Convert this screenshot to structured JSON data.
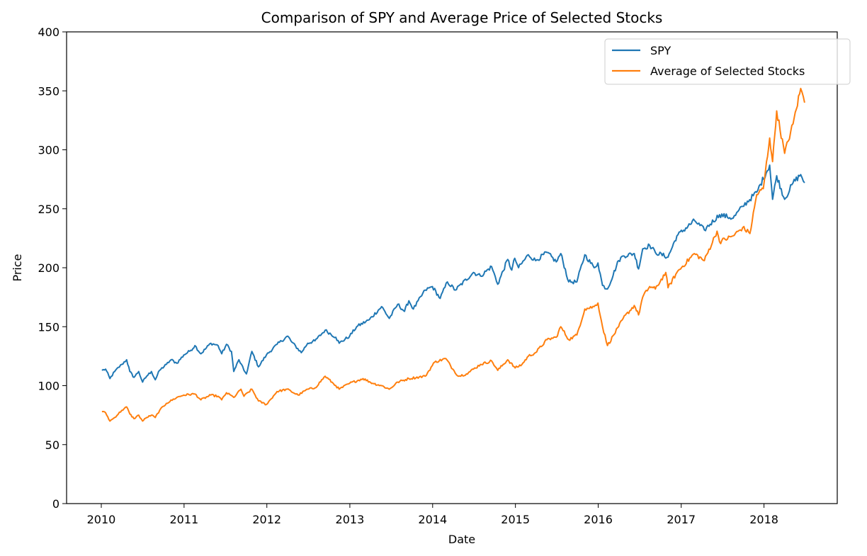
{
  "chart_data": {
    "type": "line",
    "title": "Comparison of SPY and Average Price of Selected Stocks",
    "xlabel": "Date",
    "ylabel": "Price",
    "xlim": [
      "2009-08-01",
      "2018-11-20"
    ],
    "ylim": [
      0,
      400
    ],
    "x_ticks": [
      "2010",
      "2011",
      "2012",
      "2013",
      "2014",
      "2015",
      "2016",
      "2017",
      "2018"
    ],
    "y_ticks": [
      "0",
      "50",
      "100",
      "150",
      "200",
      "250",
      "300",
      "350",
      "400"
    ],
    "grid": false,
    "legend_position": "top-right",
    "series": [
      {
        "name": "SPY",
        "color": "#1f77b4",
        "points": [
          [
            "2010-01-04",
            113
          ],
          [
            "2010-01-20",
            114
          ],
          [
            "2010-02-08",
            106
          ],
          [
            "2010-03-01",
            112
          ],
          [
            "2010-04-01",
            118
          ],
          [
            "2010-04-23",
            122
          ],
          [
            "2010-05-07",
            112
          ],
          [
            "2010-05-25",
            107
          ],
          [
            "2010-06-15",
            112
          ],
          [
            "2010-07-02",
            103
          ],
          [
            "2010-07-20",
            108
          ],
          [
            "2010-08-10",
            112
          ],
          [
            "2010-08-27",
            105
          ],
          [
            "2010-09-15",
            113
          ],
          [
            "2010-10-15",
            118
          ],
          [
            "2010-11-05",
            122
          ],
          [
            "2010-11-30",
            119
          ],
          [
            "2010-12-31",
            126
          ],
          [
            "2011-01-31",
            130
          ],
          [
            "2011-02-18",
            134
          ],
          [
            "2011-03-16",
            127
          ],
          [
            "2011-04-29",
            136
          ],
          [
            "2011-05-31",
            134
          ],
          [
            "2011-06-16",
            127
          ],
          [
            "2011-07-07",
            135
          ],
          [
            "2011-07-29",
            129
          ],
          [
            "2011-08-08",
            112
          ],
          [
            "2011-08-31",
            122
          ],
          [
            "2011-09-22",
            113
          ],
          [
            "2011-10-03",
            110
          ],
          [
            "2011-10-27",
            129
          ],
          [
            "2011-11-25",
            116
          ],
          [
            "2011-12-30",
            126
          ],
          [
            "2012-02-15",
            135
          ],
          [
            "2012-04-02",
            142
          ],
          [
            "2012-04-20",
            137
          ],
          [
            "2012-06-01",
            128
          ],
          [
            "2012-06-29",
            136
          ],
          [
            "2012-07-31",
            138
          ],
          [
            "2012-09-14",
            147
          ],
          [
            "2012-10-31",
            141
          ],
          [
            "2012-11-15",
            136
          ],
          [
            "2012-12-31",
            142
          ],
          [
            "2013-01-31",
            150
          ],
          [
            "2013-03-28",
            156
          ],
          [
            "2013-05-21",
            167
          ],
          [
            "2013-06-24",
            157
          ],
          [
            "2013-07-31",
            169
          ],
          [
            "2013-08-30",
            163
          ],
          [
            "2013-09-18",
            172
          ],
          [
            "2013-10-08",
            165
          ],
          [
            "2013-11-29",
            181
          ],
          [
            "2013-12-31",
            184
          ],
          [
            "2014-02-03",
            174
          ],
          [
            "2014-03-07",
            188
          ],
          [
            "2014-04-11",
            181
          ],
          [
            "2014-06-30",
            196
          ],
          [
            "2014-07-31",
            193
          ],
          [
            "2014-09-18",
            201
          ],
          [
            "2014-10-15",
            186
          ],
          [
            "2014-11-28",
            207
          ],
          [
            "2014-12-16",
            198
          ],
          [
            "2014-12-29",
            208
          ],
          [
            "2015-01-15",
            200
          ],
          [
            "2015-02-27",
            211
          ],
          [
            "2015-03-31",
            206
          ],
          [
            "2015-05-20",
            213
          ],
          [
            "2015-06-30",
            205
          ],
          [
            "2015-07-20",
            212
          ],
          [
            "2015-08-24",
            188
          ],
          [
            "2015-09-29",
            188
          ],
          [
            "2015-11-03",
            211
          ],
          [
            "2015-12-14",
            200
          ],
          [
            "2015-12-31",
            204
          ],
          [
            "2016-01-20",
            185
          ],
          [
            "2016-02-11",
            182
          ],
          [
            "2016-03-31",
            206
          ],
          [
            "2016-04-20",
            210
          ],
          [
            "2016-06-08",
            212
          ],
          [
            "2016-06-27",
            199
          ],
          [
            "2016-07-15",
            216
          ],
          [
            "2016-08-15",
            219
          ],
          [
            "2016-09-09",
            213
          ],
          [
            "2016-11-04",
            209
          ],
          [
            "2016-12-13",
            227
          ],
          [
            "2017-03-01",
            240
          ],
          [
            "2017-04-13",
            232
          ],
          [
            "2017-06-19",
            245
          ],
          [
            "2017-08-18",
            242
          ],
          [
            "2017-09-29",
            252
          ],
          [
            "2017-11-30",
            264
          ],
          [
            "2018-01-26",
            287
          ],
          [
            "2018-02-08",
            258
          ],
          [
            "2018-02-26",
            278
          ],
          [
            "2018-04-02",
            258
          ],
          [
            "2018-05-09",
            272
          ],
          [
            "2018-06-12",
            279
          ],
          [
            "2018-06-29",
            272
          ]
        ]
      },
      {
        "name": "Average of Selected Stocks",
        "color": "#ff7f0e",
        "points": [
          [
            "2010-01-04",
            78
          ],
          [
            "2010-01-20",
            77
          ],
          [
            "2010-02-08",
            70
          ],
          [
            "2010-03-01",
            73
          ],
          [
            "2010-04-01",
            79
          ],
          [
            "2010-04-23",
            82
          ],
          [
            "2010-05-07",
            76
          ],
          [
            "2010-05-25",
            72
          ],
          [
            "2010-06-15",
            75
          ],
          [
            "2010-07-02",
            70
          ],
          [
            "2010-07-20",
            73
          ],
          [
            "2010-08-10",
            75
          ],
          [
            "2010-08-27",
            73
          ],
          [
            "2010-09-15",
            79
          ],
          [
            "2010-10-15",
            85
          ],
          [
            "2010-11-30",
            90
          ],
          [
            "2010-12-31",
            92
          ],
          [
            "2011-02-18",
            93
          ],
          [
            "2011-03-16",
            88
          ],
          [
            "2011-04-29",
            92
          ],
          [
            "2011-05-31",
            91
          ],
          [
            "2011-06-16",
            88
          ],
          [
            "2011-07-07",
            94
          ],
          [
            "2011-08-08",
            90
          ],
          [
            "2011-09-09",
            97
          ],
          [
            "2011-09-22",
            91
          ],
          [
            "2011-10-27",
            97
          ],
          [
            "2011-11-25",
            87
          ],
          [
            "2011-12-30",
            84
          ],
          [
            "2012-02-15",
            95
          ],
          [
            "2012-03-30",
            97
          ],
          [
            "2012-05-18",
            92
          ],
          [
            "2012-06-29",
            97
          ],
          [
            "2012-07-31",
            98
          ],
          [
            "2012-09-14",
            108
          ],
          [
            "2012-10-31",
            100
          ],
          [
            "2012-11-15",
            97
          ],
          [
            "2012-12-31",
            102
          ],
          [
            "2013-02-28",
            106
          ],
          [
            "2013-04-12",
            102
          ],
          [
            "2013-05-21",
            100
          ],
          [
            "2013-06-24",
            97
          ],
          [
            "2013-07-31",
            103
          ],
          [
            "2013-09-18",
            106
          ],
          [
            "2013-11-29",
            108
          ],
          [
            "2014-01-10",
            120
          ],
          [
            "2014-02-28",
            123
          ],
          [
            "2014-03-31",
            114
          ],
          [
            "2014-04-25",
            108
          ],
          [
            "2014-05-30",
            110
          ],
          [
            "2014-07-31",
            118
          ],
          [
            "2014-09-18",
            121
          ],
          [
            "2014-10-15",
            113
          ],
          [
            "2014-11-28",
            122
          ],
          [
            "2014-12-31",
            115
          ],
          [
            "2015-01-30",
            118
          ],
          [
            "2015-02-27",
            125
          ],
          [
            "2015-03-31",
            128
          ],
          [
            "2015-05-20",
            139
          ],
          [
            "2015-06-30",
            141
          ],
          [
            "2015-07-20",
            150
          ],
          [
            "2015-08-24",
            139
          ],
          [
            "2015-09-29",
            143
          ],
          [
            "2015-11-03",
            165
          ],
          [
            "2015-12-14",
            167
          ],
          [
            "2015-12-31",
            170
          ],
          [
            "2016-01-20",
            150
          ],
          [
            "2016-02-11",
            134
          ],
          [
            "2016-03-31",
            150
          ],
          [
            "2016-04-20",
            157
          ],
          [
            "2016-06-08",
            168
          ],
          [
            "2016-06-27",
            160
          ],
          [
            "2016-07-15",
            175
          ],
          [
            "2016-08-15",
            184
          ],
          [
            "2016-09-09",
            182
          ],
          [
            "2016-10-25",
            196
          ],
          [
            "2016-11-04",
            183
          ],
          [
            "2016-12-13",
            196
          ],
          [
            "2017-02-28",
            212
          ],
          [
            "2017-04-13",
            206
          ],
          [
            "2017-06-08",
            231
          ],
          [
            "2017-06-19",
            222
          ],
          [
            "2017-08-18",
            227
          ],
          [
            "2017-09-29",
            234
          ],
          [
            "2017-10-31",
            229
          ],
          [
            "2017-11-30",
            262
          ],
          [
            "2017-12-29",
            267
          ],
          [
            "2018-01-26",
            310
          ],
          [
            "2018-02-08",
            290
          ],
          [
            "2018-02-26",
            333
          ],
          [
            "2018-04-02",
            297
          ],
          [
            "2018-05-09",
            322
          ],
          [
            "2018-06-12",
            352
          ],
          [
            "2018-06-29",
            340
          ]
        ]
      }
    ]
  }
}
